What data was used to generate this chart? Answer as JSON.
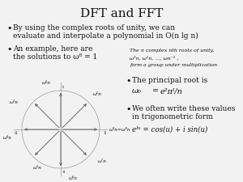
{
  "title": "DFT and FFT",
  "title_fontsize": 11,
  "bg_color": "#f2f2f2",
  "text_color": "#111111",
  "bullet1_line1": "By using the complex roots of unity, we can",
  "bullet1_line2": "evaluate and interpolate a polynomial in O(n lg n)",
  "bullet2_line1": "An example, here are",
  "bullet2_line2": "the solutions to ω⁸ = 1",
  "side_text1": "The n complex nth roots of unity,",
  "side_text2": "ω²n, ω¹n, …, ωn⁻¹ ,",
  "side_text3": "form a group under multiplication",
  "bullet3": "The principal root is",
  "bullet4_line1": "We often write these values",
  "bullet4_line2": "in trigonometric form",
  "trig_eq": "eᴵᵘ = cos(u) + i sin(u)",
  "circle_color": "#999999",
  "arrow_color": "#555555",
  "label_strs": [
    "ω⁰n=ω⁸n",
    "ω¹n",
    "ω²n",
    "ω³n",
    "ω⁴n",
    "ω⁵n",
    "ω⁶n",
    "ω⁷n"
  ],
  "axis_labels": {
    "right": "1",
    "left": "-1",
    "top": "i",
    "bottom": "-i"
  }
}
